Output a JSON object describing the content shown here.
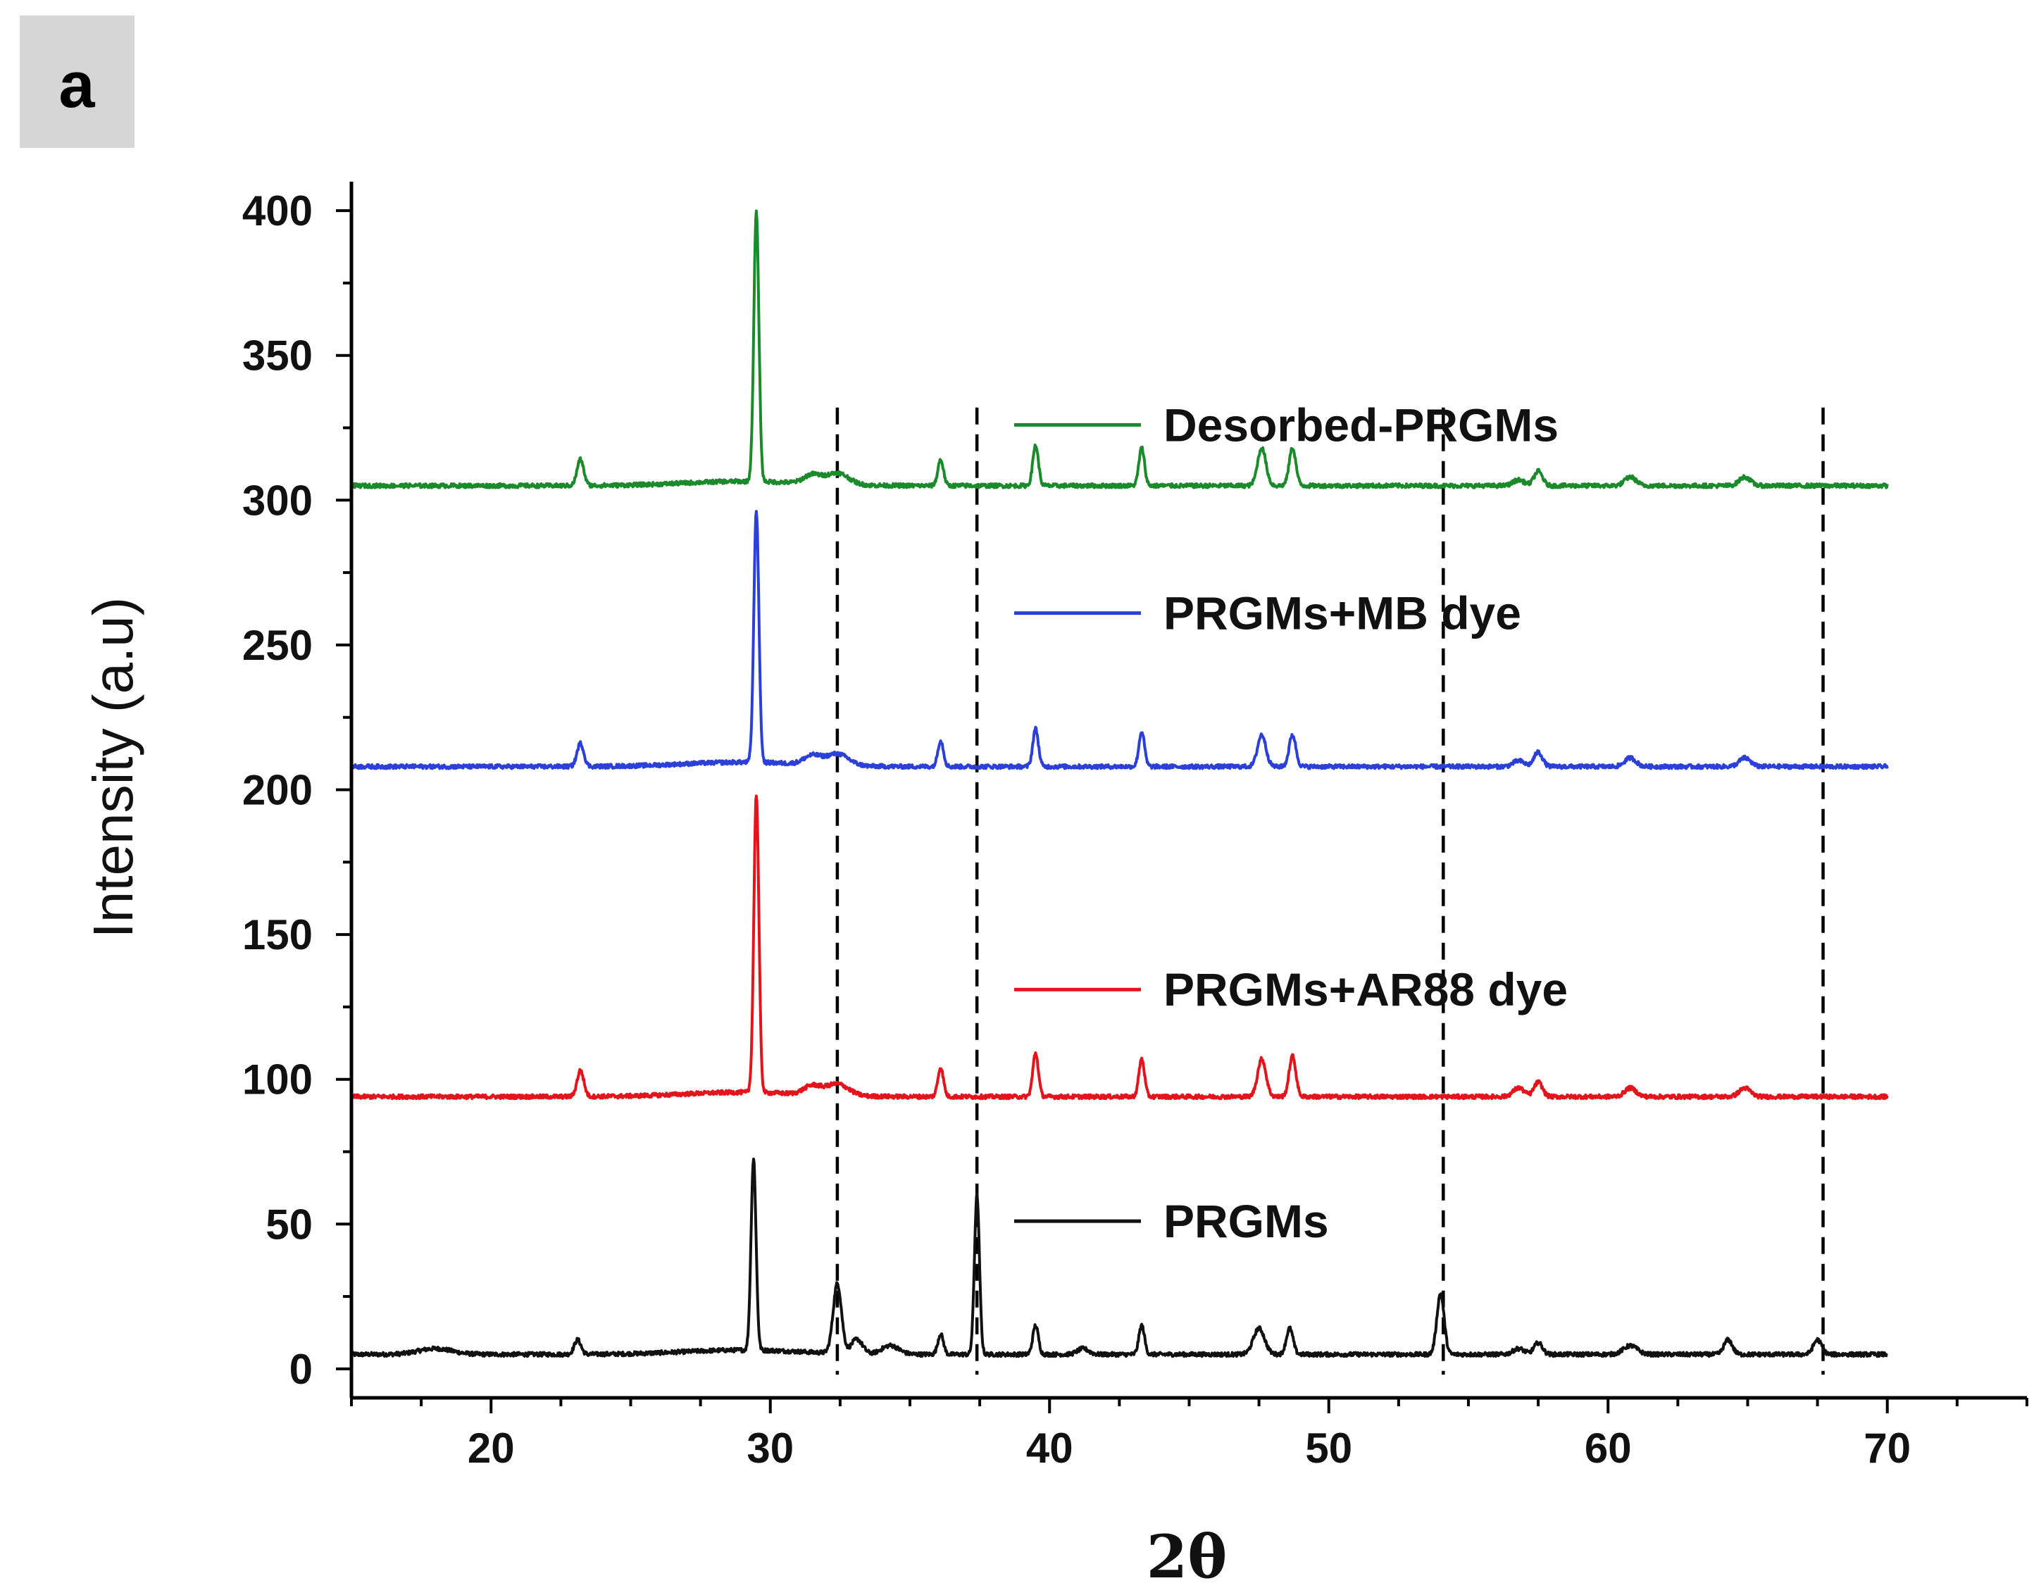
{
  "panel_label": "a",
  "colors": {
    "black": "#111111",
    "red": "#e3141b",
    "blue": "#2b3fd9",
    "green": "#1b8a2a",
    "panel_bg": "#d6d6d6"
  },
  "chart_data": {
    "type": "line",
    "title": "",
    "xlabel": "2θ",
    "ylabel": "Intensity (a.u)",
    "xlim": [
      15,
      75
    ],
    "ylim": [
      -10,
      410
    ],
    "xticks": [
      20,
      30,
      40,
      50,
      60,
      70
    ],
    "yticks": [
      0,
      50,
      100,
      150,
      200,
      250,
      300,
      350,
      400
    ],
    "x_range": [
      15,
      70
    ],
    "reference_lines_x": [
      32.4,
      37.4,
      54.1,
      67.7
    ],
    "series": [
      {
        "name": "PRGMs",
        "color": "#111111",
        "baseline": 5,
        "peaks": [
          {
            "x": 18.0,
            "h": 2,
            "w": 0.6
          },
          {
            "x": 23.1,
            "h": 5,
            "w": 0.12
          },
          {
            "x": 29.4,
            "h": 66,
            "w": 0.09
          },
          {
            "x": 32.4,
            "h": 24,
            "w": 0.15
          },
          {
            "x": 33.1,
            "h": 5,
            "w": 0.2
          },
          {
            "x": 34.3,
            "h": 3,
            "w": 0.3
          },
          {
            "x": 36.1,
            "h": 7,
            "w": 0.1
          },
          {
            "x": 37.4,
            "h": 55,
            "w": 0.09
          },
          {
            "x": 39.5,
            "h": 10,
            "w": 0.1
          },
          {
            "x": 41.2,
            "h": 2,
            "w": 0.2
          },
          {
            "x": 43.3,
            "h": 10,
            "w": 0.1
          },
          {
            "x": 47.5,
            "h": 9,
            "w": 0.2
          },
          {
            "x": 48.6,
            "h": 9,
            "w": 0.12
          },
          {
            "x": 54.0,
            "h": 21,
            "w": 0.13
          },
          {
            "x": 56.8,
            "h": 2,
            "w": 0.2
          },
          {
            "x": 57.5,
            "h": 4,
            "w": 0.15
          },
          {
            "x": 60.8,
            "h": 3,
            "w": 0.25
          },
          {
            "x": 64.3,
            "h": 5,
            "w": 0.15
          },
          {
            "x": 67.5,
            "h": 5,
            "w": 0.15
          }
        ]
      },
      {
        "name": "PRGMs+AR88 dye",
        "color": "#e3141b",
        "baseline": 94,
        "peaks": [
          {
            "x": 23.2,
            "h": 9,
            "w": 0.12
          },
          {
            "x": 29.5,
            "h": 103,
            "w": 0.09
          },
          {
            "x": 31.5,
            "h": 3,
            "w": 0.3
          },
          {
            "x": 32.4,
            "h": 4,
            "w": 0.4
          },
          {
            "x": 36.1,
            "h": 10,
            "w": 0.1
          },
          {
            "x": 39.5,
            "h": 15,
            "w": 0.1
          },
          {
            "x": 43.3,
            "h": 13,
            "w": 0.1
          },
          {
            "x": 47.6,
            "h": 13,
            "w": 0.15
          },
          {
            "x": 48.7,
            "h": 14,
            "w": 0.12
          },
          {
            "x": 56.8,
            "h": 3,
            "w": 0.2
          },
          {
            "x": 57.5,
            "h": 5,
            "w": 0.15
          },
          {
            "x": 60.8,
            "h": 3,
            "w": 0.2
          },
          {
            "x": 64.9,
            "h": 3,
            "w": 0.2
          }
        ]
      },
      {
        "name": "PRGMs+MB dye",
        "color": "#2b3fd9",
        "baseline": 208,
        "peaks": [
          {
            "x": 23.2,
            "h": 8,
            "w": 0.12
          },
          {
            "x": 29.5,
            "h": 87,
            "w": 0.09
          },
          {
            "x": 31.5,
            "h": 3,
            "w": 0.3
          },
          {
            "x": 32.4,
            "h": 4,
            "w": 0.4
          },
          {
            "x": 36.1,
            "h": 9,
            "w": 0.1
          },
          {
            "x": 39.5,
            "h": 13,
            "w": 0.1
          },
          {
            "x": 43.3,
            "h": 12,
            "w": 0.1
          },
          {
            "x": 47.6,
            "h": 11,
            "w": 0.15
          },
          {
            "x": 48.7,
            "h": 11,
            "w": 0.12
          },
          {
            "x": 56.8,
            "h": 2,
            "w": 0.2
          },
          {
            "x": 57.5,
            "h": 5,
            "w": 0.15
          },
          {
            "x": 60.8,
            "h": 3,
            "w": 0.2
          },
          {
            "x": 64.9,
            "h": 3,
            "w": 0.2
          }
        ]
      },
      {
        "name": "Desorbed-PRGMs",
        "color": "#1b8a2a",
        "baseline": 305,
        "peaks": [
          {
            "x": 23.2,
            "h": 9,
            "w": 0.12
          },
          {
            "x": 29.5,
            "h": 93,
            "w": 0.09
          },
          {
            "x": 31.5,
            "h": 3,
            "w": 0.3
          },
          {
            "x": 32.4,
            "h": 4,
            "w": 0.4
          },
          {
            "x": 36.1,
            "h": 9,
            "w": 0.1
          },
          {
            "x": 39.5,
            "h": 14,
            "w": 0.1
          },
          {
            "x": 43.3,
            "h": 13,
            "w": 0.1
          },
          {
            "x": 47.6,
            "h": 13,
            "w": 0.15
          },
          {
            "x": 48.7,
            "h": 13,
            "w": 0.12
          },
          {
            "x": 56.8,
            "h": 2,
            "w": 0.2
          },
          {
            "x": 57.5,
            "h": 5,
            "w": 0.15
          },
          {
            "x": 60.8,
            "h": 3,
            "w": 0.2
          },
          {
            "x": 64.9,
            "h": 3,
            "w": 0.2
          }
        ]
      }
    ],
    "legend": [
      {
        "label": "Desorbed-PRGMs",
        "color": "#1b8a2a",
        "anchor_y": 326
      },
      {
        "label": "PRGMs+MB dye",
        "color": "#2b3fd9",
        "anchor_y": 261
      },
      {
        "label": "PRGMs+AR88 dye",
        "color": "#e3141b",
        "anchor_y": 131
      },
      {
        "label": "PRGMs",
        "color": "#111111",
        "anchor_y": 51
      }
    ]
  }
}
